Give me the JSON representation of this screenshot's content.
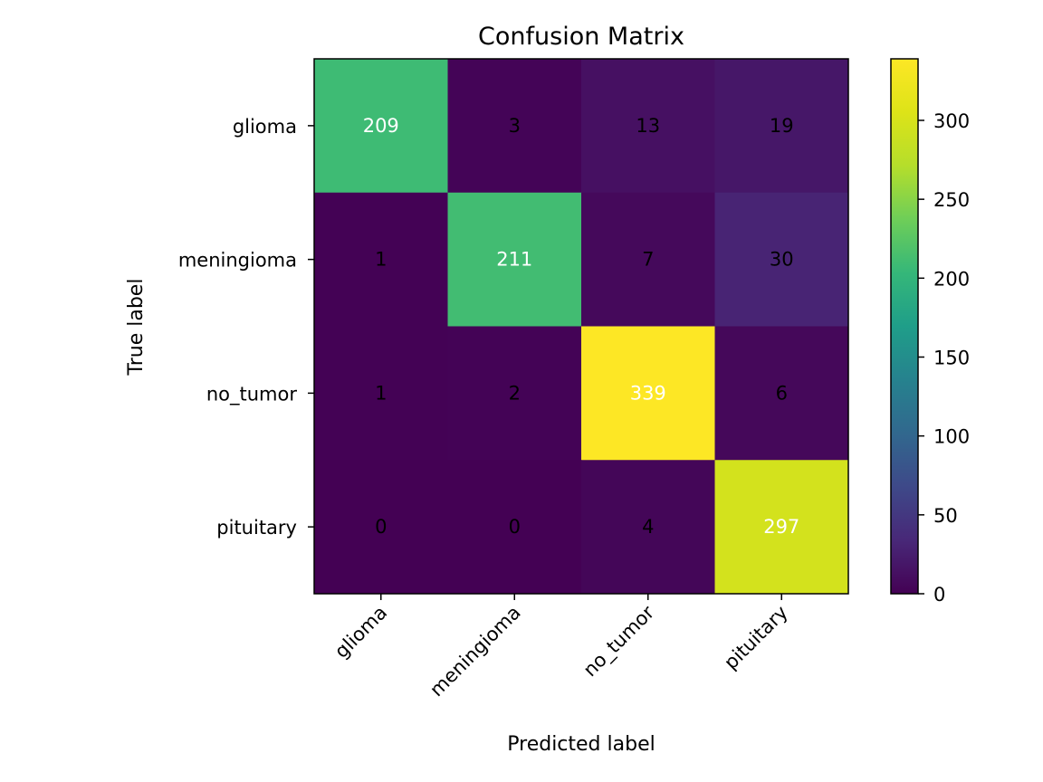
{
  "chart_data": {
    "type": "heatmap",
    "title": "Confusion Matrix",
    "xlabel": "Predicted label",
    "ylabel": "True label",
    "x_categories": [
      "glioma",
      "meningioma",
      "no_tumor",
      "pituitary"
    ],
    "y_categories": [
      "glioma",
      "meningioma",
      "no_tumor",
      "pituitary"
    ],
    "values": [
      [
        209,
        3,
        13,
        19
      ],
      [
        1,
        211,
        7,
        30
      ],
      [
        1,
        2,
        339,
        6
      ],
      [
        0,
        0,
        4,
        297
      ]
    ],
    "colormap": "viridis",
    "color_range": [
      0,
      339
    ],
    "colorbar_ticks": [
      "0",
      "50",
      "100",
      "150",
      "200",
      "250",
      "300"
    ],
    "x_tick_rotation": "45deg",
    "grid": false
  }
}
